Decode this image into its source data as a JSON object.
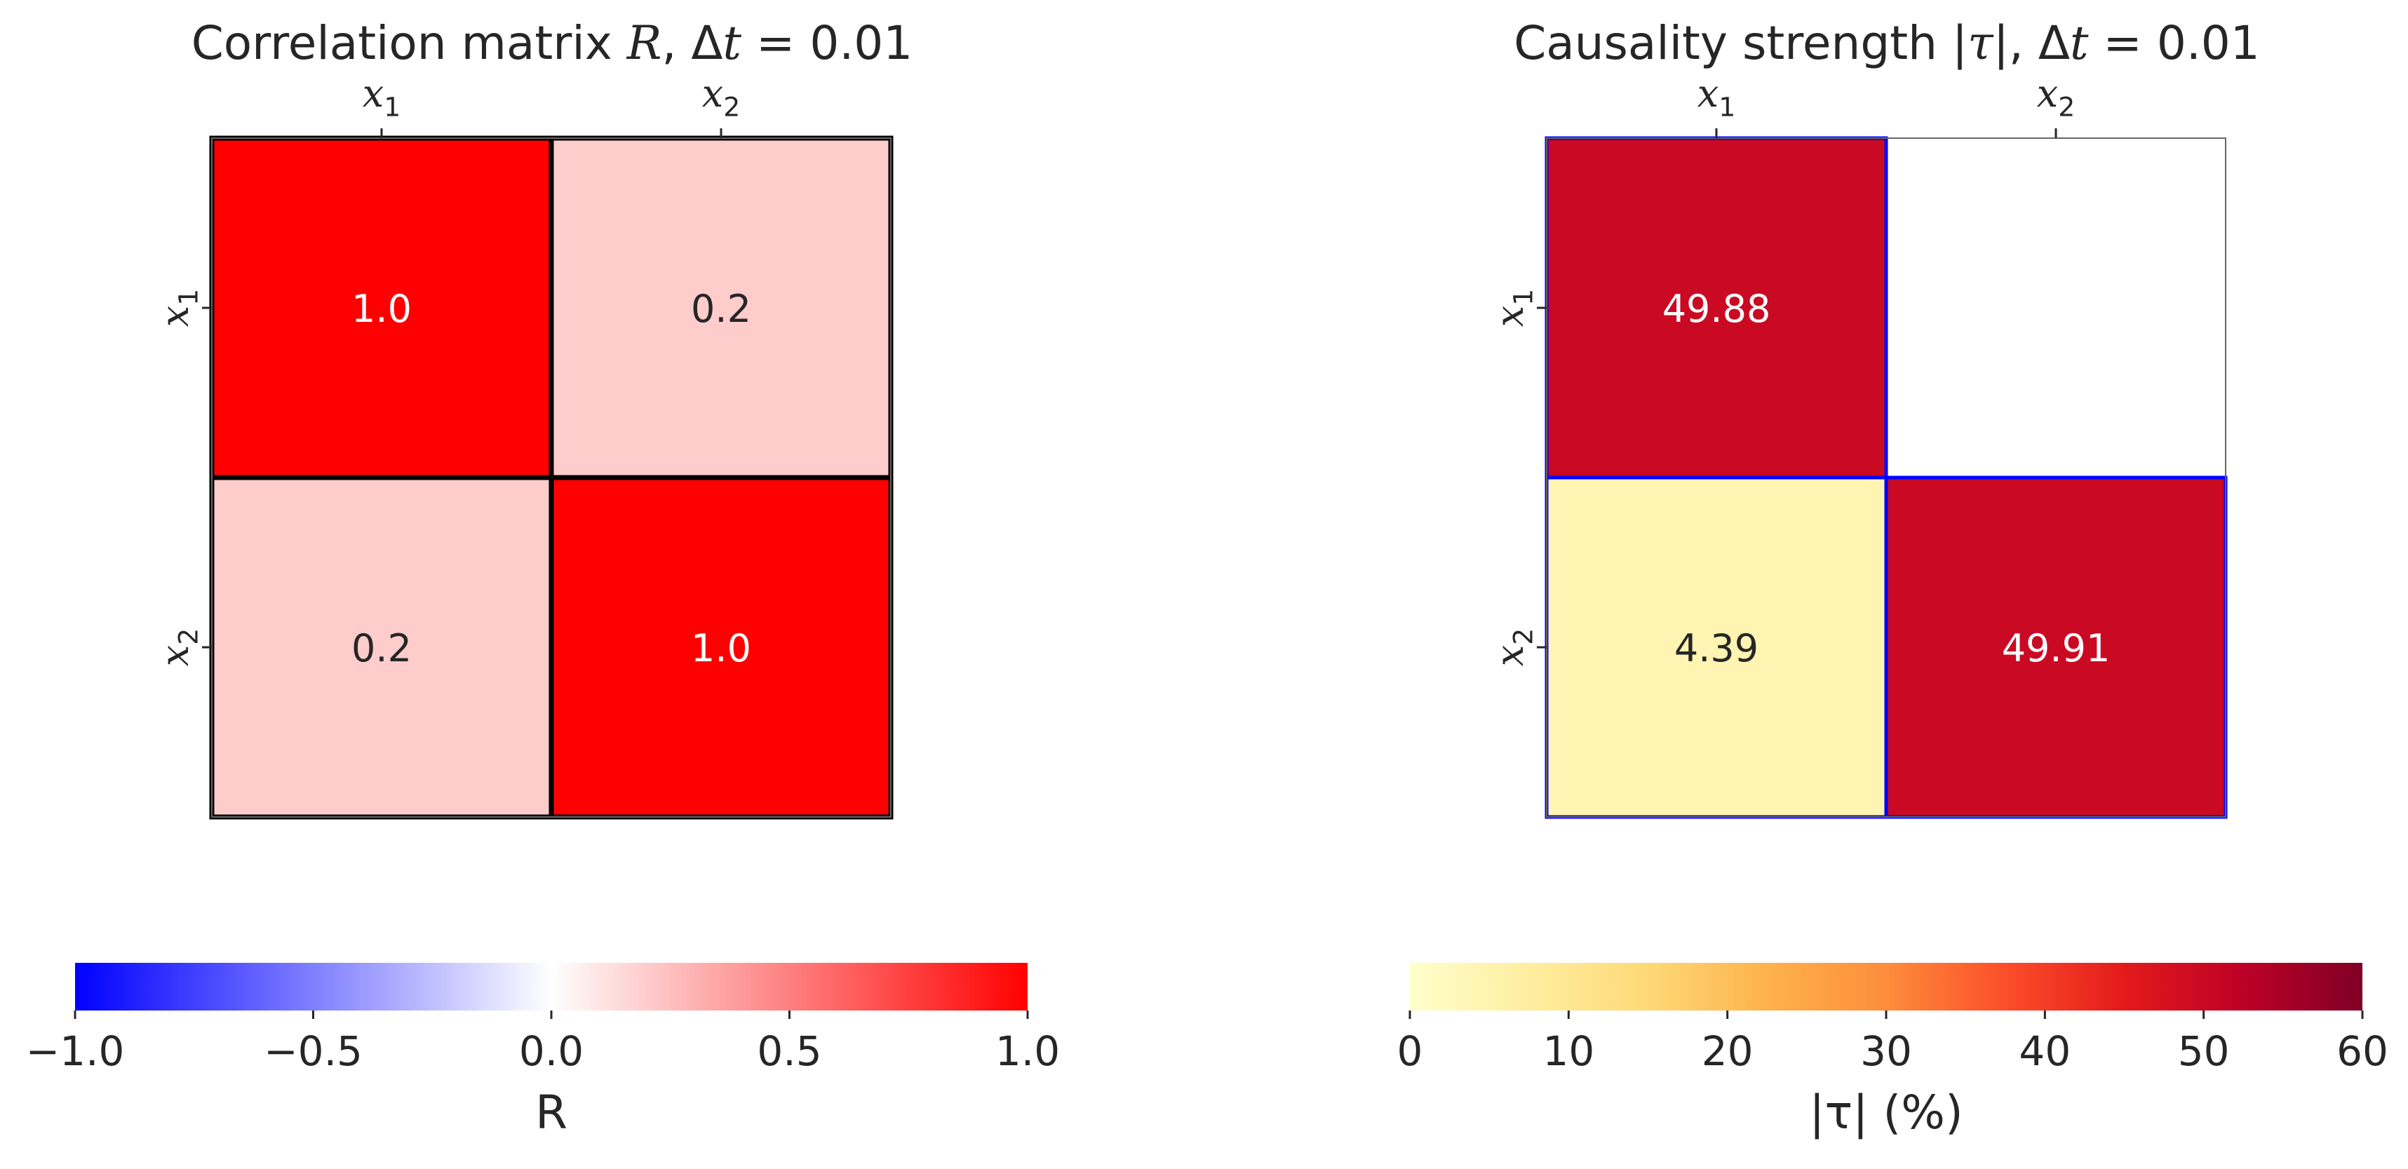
{
  "chart_data": [
    {
      "type": "heatmap",
      "title": "Correlation matrix R, Δt = 0.01",
      "title_parts": {
        "pre": "Correlation matrix ",
        "var": "R",
        "mid": ", Δ",
        "var2": "t",
        "post": " = 0.01"
      },
      "x_tick_labels": [
        {
          "base": "x",
          "sub": "1"
        },
        {
          "base": "x",
          "sub": "2"
        }
      ],
      "y_tick_labels": [
        {
          "base": "x",
          "sub": "1"
        },
        {
          "base": "x",
          "sub": "2"
        }
      ],
      "values": [
        [
          1.0,
          0.2
        ],
        [
          0.2,
          1.0
        ]
      ],
      "cell_labels": [
        [
          "1.0",
          "0.2"
        ],
        [
          "0.2",
          "1.0"
        ]
      ],
      "cell_border_color": "#000000",
      "colormap": "bwr",
      "colormap_stops": [
        "#0000ff",
        "#ffffff",
        "#ff0000"
      ],
      "vmin": -1.0,
      "vmax": 1.0,
      "colorbar": {
        "label": "R",
        "ticks": [
          -1.0,
          -0.5,
          0.0,
          0.5,
          1.0
        ],
        "tick_labels": [
          "−1.0",
          "−0.5",
          "0.0",
          "0.5",
          "1.0"
        ],
        "orientation": "horizontal"
      }
    },
    {
      "type": "heatmap",
      "title": "Causality strength |τ|, Δt = 0.01",
      "title_parts": {
        "pre": "Causality strength |",
        "var": "τ",
        "mid": "|, Δ",
        "var2": "t",
        "post": " = 0.01"
      },
      "x_tick_labels": [
        {
          "base": "x",
          "sub": "1"
        },
        {
          "base": "x",
          "sub": "2"
        }
      ],
      "y_tick_labels": [
        {
          "base": "x",
          "sub": "1"
        },
        {
          "base": "x",
          "sub": "2"
        }
      ],
      "values": [
        [
          49.88,
          null
        ],
        [
          4.39,
          49.91
        ]
      ],
      "cell_labels": [
        [
          "49.88",
          ""
        ],
        [
          "4.39",
          "49.91"
        ]
      ],
      "cell_border_color": "#0000ff",
      "colormap": "YlOrRd",
      "colormap_stops": [
        "#ffffcc",
        "#ffeda0",
        "#fed976",
        "#feb24c",
        "#fd8d3c",
        "#fc4e2a",
        "#e31a1c",
        "#bd0026",
        "#800026"
      ],
      "vmin": 0,
      "vmax": 60,
      "colorbar": {
        "label": "|τ| (%)",
        "ticks": [
          0,
          10,
          20,
          30,
          40,
          50,
          60
        ],
        "tick_labels": [
          "0",
          "10",
          "20",
          "30",
          "40",
          "50",
          "60"
        ],
        "orientation": "horizontal"
      }
    }
  ]
}
